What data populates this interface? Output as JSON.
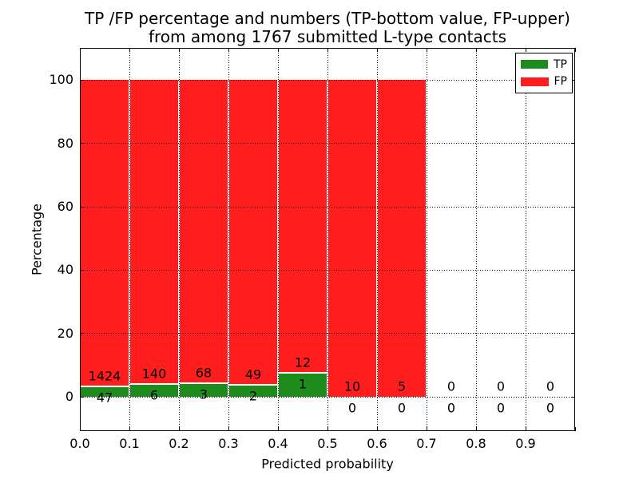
{
  "chart_data": {
    "type": "bar",
    "stacked": true,
    "title_line1": "TP /FP percentage and numbers (TP-bottom value, FP-upper)",
    "title_line2": "from among 1767 submitted L-type contacts",
    "xlabel": "Predicted probability",
    "ylabel": "Percentage",
    "xlim": [
      0.0,
      1.0
    ],
    "ylim": [
      -10.8,
      110.2
    ],
    "grid": "dotted",
    "legend_position": "upper right",
    "bin_width": 0.1,
    "bin_starts": [
      0.0,
      0.1,
      0.2,
      0.3,
      0.4,
      0.5,
      0.6,
      0.7,
      0.8,
      0.9
    ],
    "xticks": [
      "0.0",
      "0.1",
      "0.2",
      "0.3",
      "0.4",
      "0.5",
      "0.6",
      "0.7",
      "0.8",
      "0.9"
    ],
    "yticks": [
      0,
      20,
      40,
      60,
      80,
      100
    ],
    "series": [
      {
        "name": "TP",
        "color": "#1d8c1d",
        "counts": [
          47,
          6,
          3,
          2,
          1,
          0,
          0,
          0,
          0,
          0
        ]
      },
      {
        "name": "FP",
        "color": "#ff1d1d",
        "counts": [
          1424,
          140,
          68,
          49,
          12,
          10,
          5,
          0,
          0,
          0
        ]
      }
    ],
    "total_submitted": 1767,
    "bar_unit": "percentage of bin total (TP% bottom, FP% top, stacked to 100)"
  }
}
